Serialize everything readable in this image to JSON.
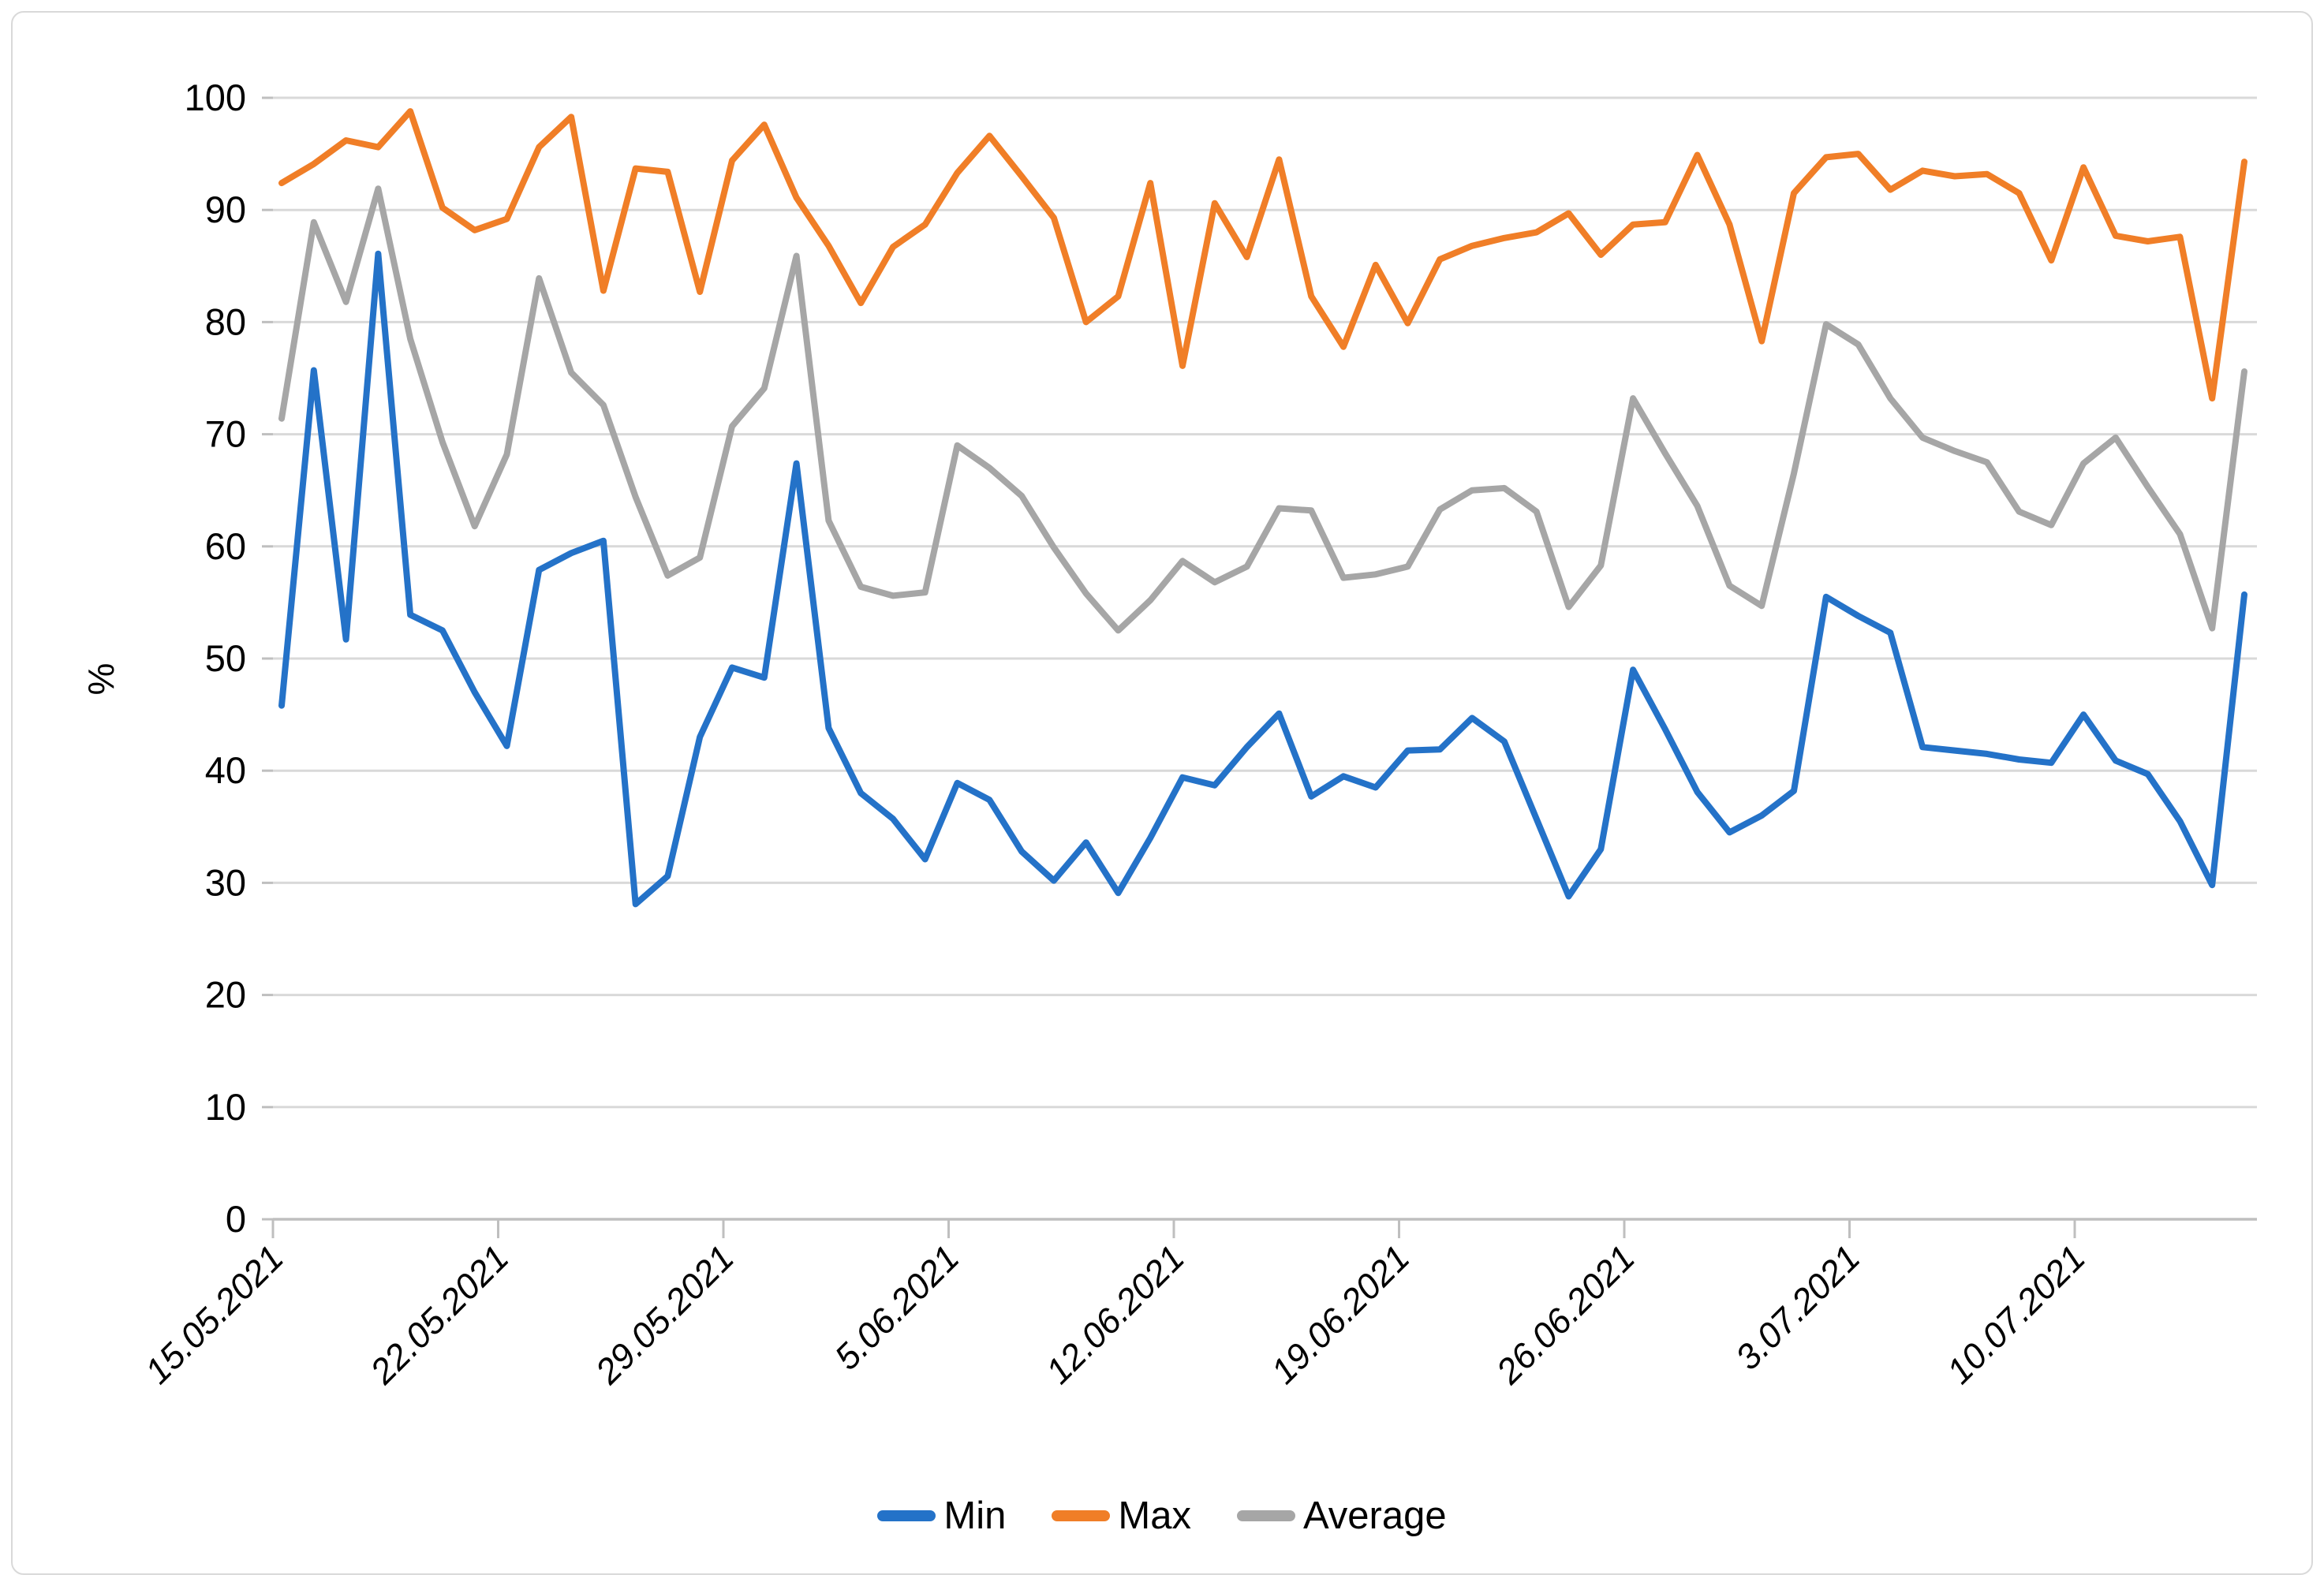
{
  "figure": {
    "background": "#ffffff",
    "border_color": "#d9d9d9"
  },
  "chart_data": {
    "type": "line",
    "title": "",
    "xlabel": "",
    "ylabel": "%",
    "ylim": [
      0,
      100
    ],
    "y_tick_step": 10,
    "y_tick_labels": [
      "0",
      "10",
      "20",
      "30",
      "40",
      "50",
      "60",
      "70",
      "80",
      "90",
      "100"
    ],
    "x_tick_labels": [
      "15.05.2021",
      "22.05.2021",
      "29.05.2021",
      "5.06.2021",
      "12.06.2021",
      "19.06.2021",
      "26.06.2021",
      "3.07.2021",
      "10.07.2021"
    ],
    "x_tick_every": 7,
    "grid": true,
    "legend_position": "bottom",
    "colors": {
      "gridline": "#d9d9d9",
      "axis": "#bfbfbf",
      "text": "#000000"
    },
    "categories": [
      "15.05.2021",
      "16.05.2021",
      "17.05.2021",
      "18.05.2021",
      "19.05.2021",
      "20.05.2021",
      "21.05.2021",
      "22.05.2021",
      "23.05.2021",
      "24.05.2021",
      "25.05.2021",
      "26.05.2021",
      "27.05.2021",
      "28.05.2021",
      "29.05.2021",
      "30.05.2021",
      "31.05.2021",
      "1.06.2021",
      "2.06.2021",
      "3.06.2021",
      "4.06.2021",
      "5.06.2021",
      "6.06.2021",
      "7.06.2021",
      "8.06.2021",
      "9.06.2021",
      "10.06.2021",
      "11.06.2021",
      "12.06.2021",
      "13.06.2021",
      "14.06.2021",
      "15.06.2021",
      "16.06.2021",
      "17.06.2021",
      "18.06.2021",
      "19.06.2021",
      "20.06.2021",
      "21.06.2021",
      "22.06.2021",
      "23.06.2021",
      "24.06.2021",
      "25.06.2021",
      "26.06.2021",
      "27.06.2021",
      "28.06.2021",
      "29.06.2021",
      "30.06.2021",
      "1.07.2021",
      "2.07.2021",
      "3.07.2021",
      "4.07.2021",
      "5.07.2021",
      "6.07.2021",
      "7.07.2021",
      "8.07.2021",
      "9.07.2021",
      "10.07.2021",
      "11.07.2021",
      "12.07.2021",
      "13.07.2021",
      "14.07.2021",
      "15.07.2021"
    ],
    "series": [
      {
        "name": "Min",
        "color": "#2472c8",
        "values": [
          45.8,
          75.7,
          51.7,
          86.1,
          53.9,
          52.5,
          47.0,
          42.2,
          57.9,
          59.4,
          60.5,
          28.1,
          30.6,
          43.0,
          49.2,
          48.3,
          67.4,
          43.8,
          38.0,
          35.7,
          32.1,
          38.9,
          37.4,
          32.8,
          30.2,
          33.6,
          29.1,
          34.0,
          39.4,
          38.7,
          42.1,
          45.1,
          37.7,
          39.5,
          38.5,
          41.8,
          41.9,
          44.7,
          42.6,
          35.7,
          28.8,
          33.0,
          49.0,
          43.7,
          38.1,
          34.5,
          36.0,
          38.2,
          55.5,
          53.8,
          52.3,
          42.1,
          41.8,
          41.5,
          41.0,
          40.7,
          45.0,
          40.9,
          39.7,
          35.5,
          29.8,
          55.7
        ]
      },
      {
        "name": "Max",
        "color": "#f07e27",
        "values": [
          92.4,
          94.1,
          96.2,
          95.6,
          98.8,
          90.2,
          88.2,
          89.2,
          95.6,
          98.3,
          82.8,
          93.7,
          93.4,
          82.7,
          94.4,
          97.6,
          91.1,
          86.8,
          81.7,
          86.7,
          88.7,
          93.3,
          96.6,
          93.0,
          89.3,
          80.0,
          82.3,
          92.4,
          76.1,
          90.6,
          85.8,
          94.5,
          82.3,
          77.8,
          85.1,
          79.9,
          85.6,
          86.8,
          87.5,
          88.0,
          89.7,
          86.0,
          88.7,
          88.9,
          94.9,
          88.7,
          78.3,
          91.5,
          94.7,
          95.0,
          91.8,
          93.5,
          93.0,
          93.2,
          91.5,
          85.5,
          93.8,
          87.7,
          87.2,
          87.6,
          73.2,
          94.3
        ]
      },
      {
        "name": "Average",
        "color": "#a6a6a6",
        "values": [
          71.4,
          88.9,
          81.8,
          91.9,
          78.5,
          69.3,
          61.8,
          68.2,
          83.9,
          75.5,
          72.6,
          64.4,
          57.4,
          59.0,
          70.7,
          74.1,
          85.9,
          62.3,
          56.4,
          55.6,
          55.9,
          69.0,
          67.0,
          64.5,
          59.9,
          55.8,
          52.5,
          55.2,
          58.7,
          56.8,
          58.2,
          63.4,
          63.2,
          57.2,
          57.5,
          58.2,
          63.3,
          65.0,
          65.2,
          63.1,
          54.6,
          58.3,
          73.2,
          68.3,
          63.6,
          56.5,
          54.7,
          66.5,
          79.8,
          78.0,
          73.2,
          69.7,
          68.5,
          67.5,
          63.1,
          61.9,
          67.4,
          69.7,
          65.3,
          61.1,
          52.7,
          75.6
        ]
      }
    ]
  }
}
